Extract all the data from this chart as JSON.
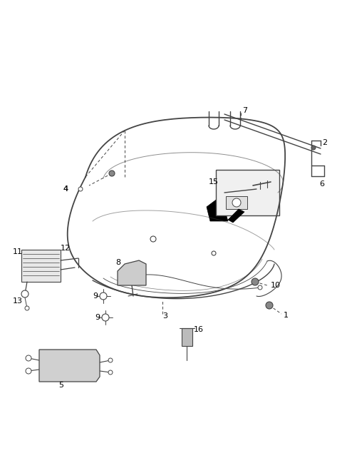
{
  "bg_color": "#ffffff",
  "line_color": "#444444",
  "dark_color": "#111111",
  "label_color": "#000000",
  "fig_w": 4.8,
  "fig_h": 6.56,
  "dpi": 100
}
